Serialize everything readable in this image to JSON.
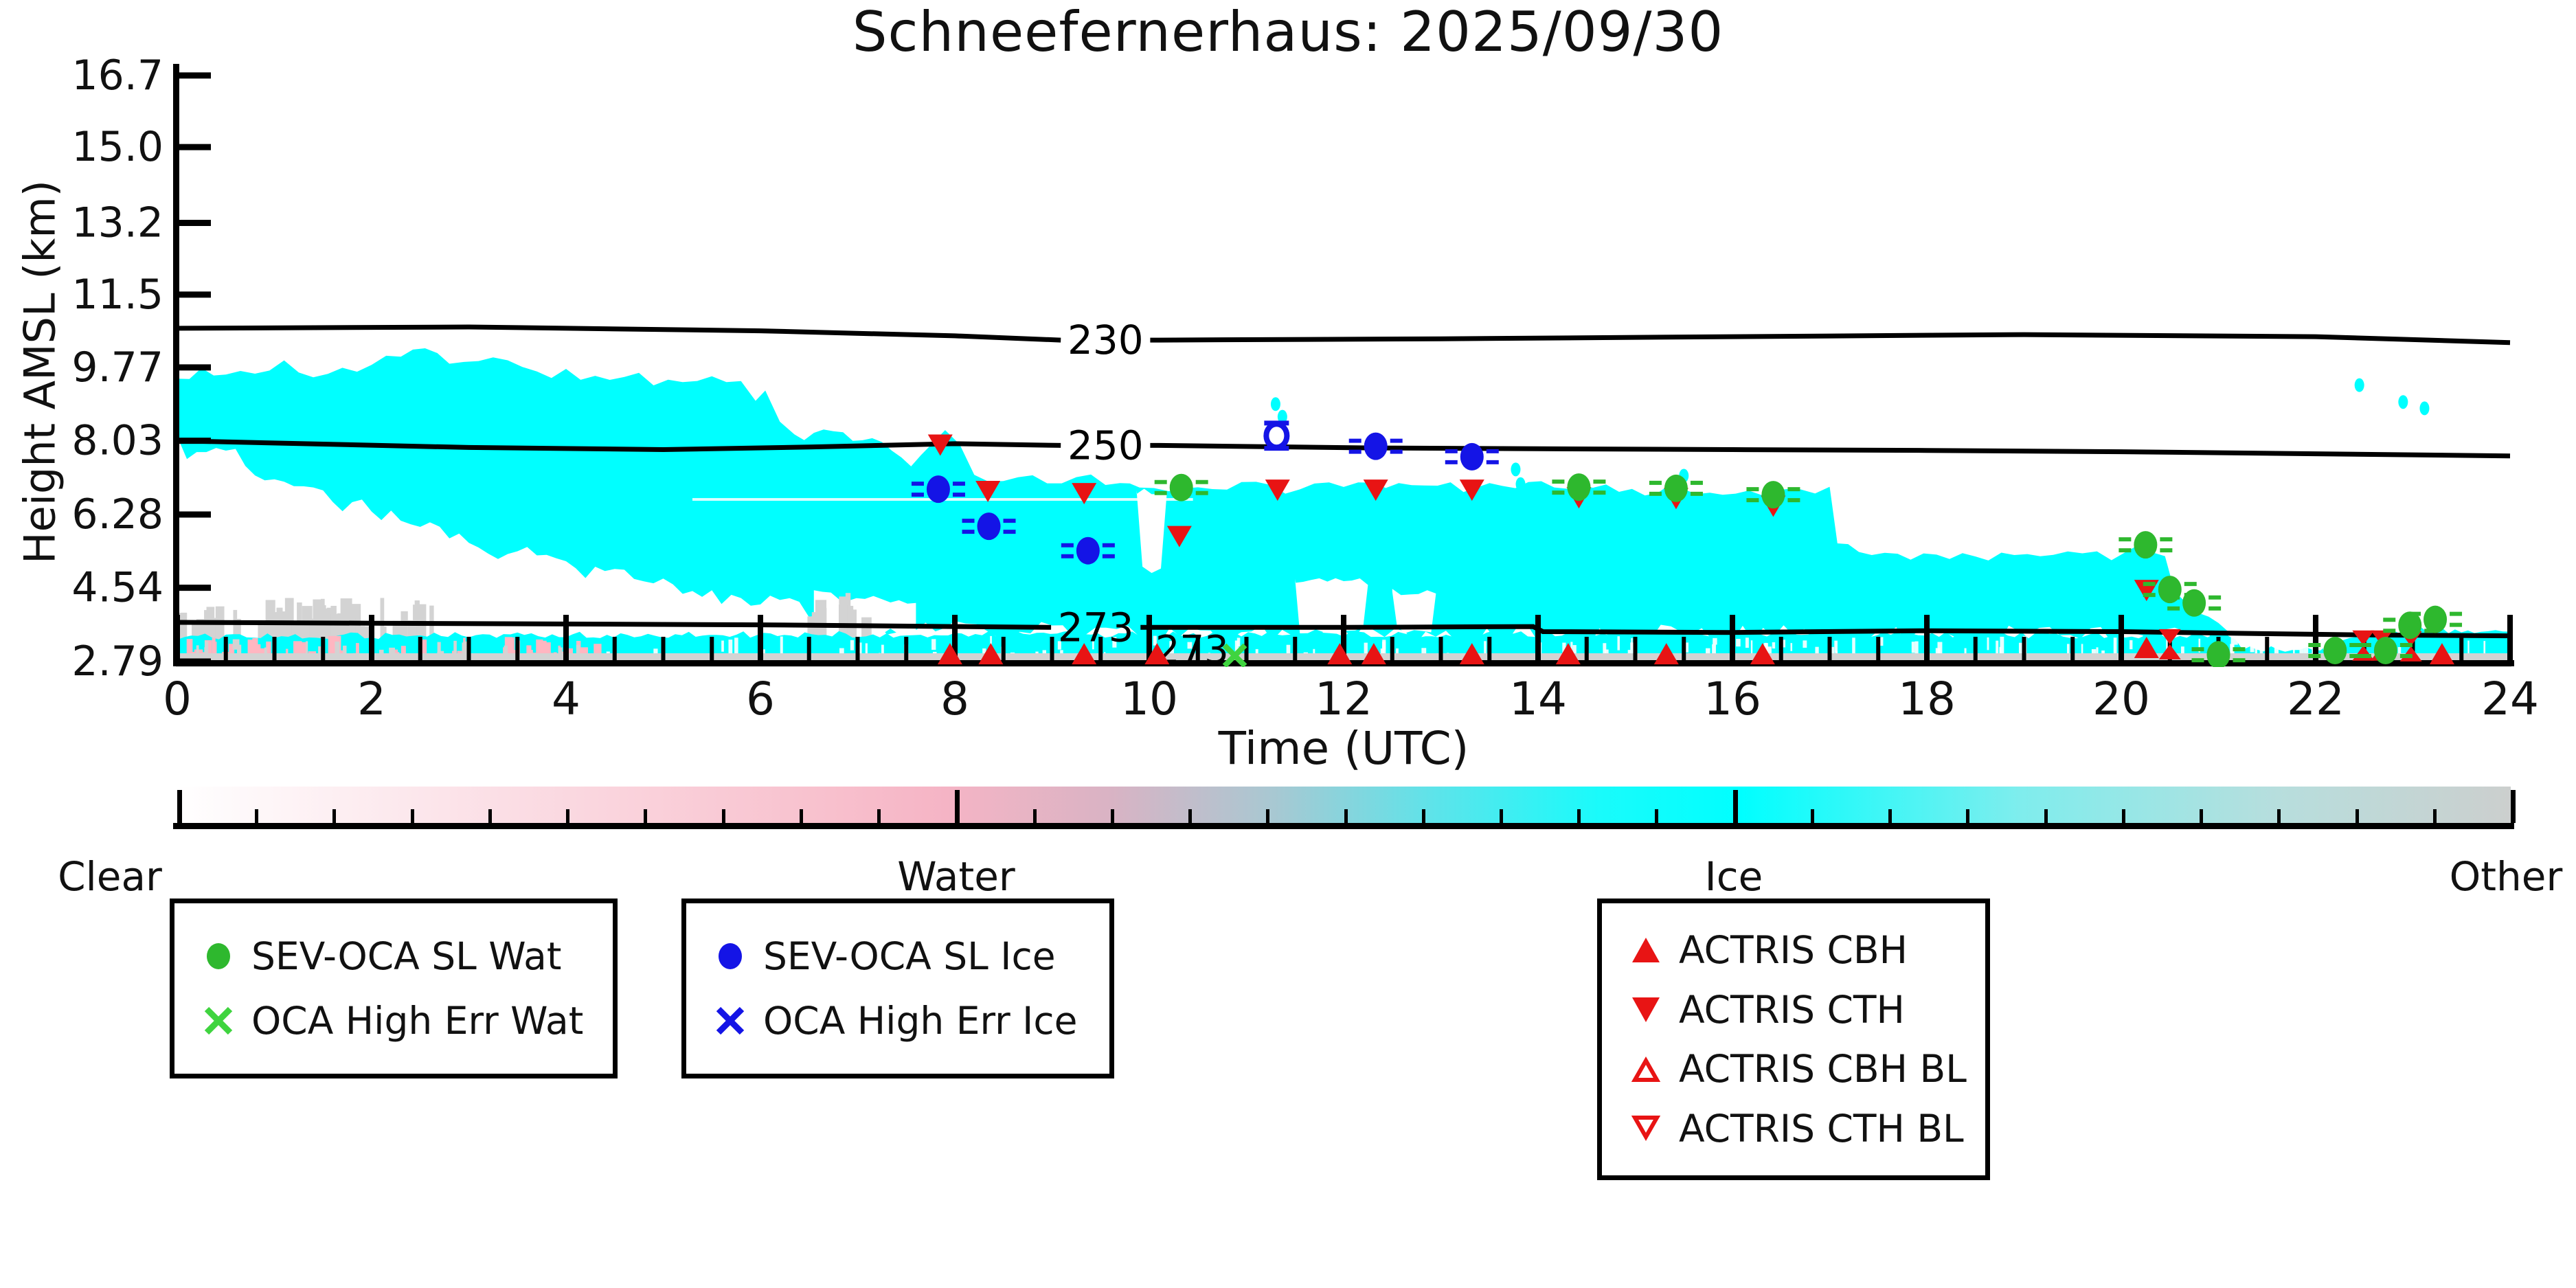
{
  "title": "Schneefernerhaus: 2025/09/30",
  "axes": {
    "xlabel": "Time (UTC)",
    "ylabel": "Height AMSL (km)",
    "xticks": [
      "0",
      "2",
      "4",
      "6",
      "8",
      "10",
      "12",
      "14",
      "16",
      "18",
      "20",
      "22",
      "24"
    ],
    "yticks": [
      "16.7",
      "15.0",
      "13.2",
      "11.5",
      "9.77",
      "8.03",
      "6.28",
      "4.54",
      "2.79"
    ],
    "xrange": [
      0,
      24
    ],
    "x_minor_step_h": 0.5
  },
  "colorbar": {
    "labels": [
      "Clear",
      "Water",
      "Ice",
      "Other"
    ],
    "gradient": [
      [
        0,
        "#ffffff"
      ],
      [
        0.14,
        "#fbdee5"
      ],
      [
        0.28,
        "#f8c0cd"
      ],
      [
        0.33,
        "#f5b4c5"
      ],
      [
        0.4,
        "#d9b3c4"
      ],
      [
        0.47,
        "#a8c8d2"
      ],
      [
        0.54,
        "#5ce4ea"
      ],
      [
        0.61,
        "#19fbfb"
      ],
      [
        0.67,
        "#00ffff"
      ],
      [
        0.79,
        "#7feded"
      ],
      [
        0.9,
        "#b7dedd"
      ],
      [
        1,
        "#cccfce"
      ]
    ]
  },
  "legends": [
    {
      "items": [
        {
          "marker": "circle",
          "color": "#2eb82e",
          "label": "SEV-OCA SL Wat"
        },
        {
          "marker": "x",
          "color": "#3fd43f",
          "label": "OCA High Err Wat"
        }
      ]
    },
    {
      "items": [
        {
          "marker": "circle",
          "color": "#1414e6",
          "label": "SEV-OCA SL Ice"
        },
        {
          "marker": "x",
          "color": "#1414e6",
          "label": "OCA High Err Ice"
        }
      ]
    },
    {
      "items": [
        {
          "marker": "tri-up",
          "color": "#e81414",
          "label": "ACTRIS CBH"
        },
        {
          "marker": "tri-down",
          "color": "#e81414",
          "label": "ACTRIS CTH"
        },
        {
          "marker": "tri-up-open",
          "color": "#e81414",
          "label": "ACTRIS CBH BL"
        },
        {
          "marker": "tri-down-open",
          "color": "#e81414",
          "label": "ACTRIS CTH BL"
        }
      ]
    }
  ],
  "chart_data": {
    "type": "heatmap",
    "title": "Schneefernerhaus: 2025/09/30",
    "xlabel": "Time (UTC)",
    "ylabel": "Height AMSL (km)",
    "xlim": [
      0,
      24
    ],
    "ytick_km": [
      2.79,
      4.54,
      6.28,
      8.03,
      9.77,
      11.5,
      13.2,
      15.0,
      16.7
    ],
    "category_colors": {
      "clear": "#ffffff",
      "water": "#ffb6c1",
      "ice": "#00ffff",
      "other": "#d3d3d3"
    },
    "contours": [
      {
        "label": "230",
        "label_at": [
          9.55,
          10.42
        ],
        "points": [
          [
            0,
            10.7
          ],
          [
            3,
            10.73
          ],
          [
            6,
            10.64
          ],
          [
            8,
            10.52
          ],
          [
            9.1,
            10.46
          ],
          [
            10.1,
            10.42
          ],
          [
            13,
            10.45
          ],
          [
            16,
            10.5
          ],
          [
            19,
            10.55
          ],
          [
            22,
            10.5
          ],
          [
            24,
            10.36
          ]
        ]
      },
      {
        "label": "250",
        "label_at": [
          9.55,
          7.92
        ],
        "points": [
          [
            0,
            8.03
          ],
          [
            1.5,
            7.95
          ],
          [
            3,
            7.87
          ],
          [
            5,
            7.82
          ],
          [
            6.5,
            7.88
          ],
          [
            8,
            7.96
          ],
          [
            9.1,
            7.94
          ],
          [
            10.1,
            7.92
          ],
          [
            12.3,
            7.86
          ],
          [
            14,
            7.84
          ],
          [
            16,
            7.82
          ],
          [
            18,
            7.8
          ],
          [
            20,
            7.77
          ],
          [
            22,
            7.72
          ],
          [
            24,
            7.67
          ]
        ]
      },
      {
        "label": "273",
        "label_at": [
          9.45,
          3.6
        ],
        "label2_at": [
          10.44,
          3.06
        ],
        "points": [
          [
            0,
            3.72
          ],
          [
            2,
            3.7
          ],
          [
            4,
            3.68
          ],
          [
            6,
            3.66
          ],
          [
            8,
            3.62
          ],
          [
            9.0,
            3.61
          ],
          [
            9.9,
            3.58
          ],
          [
            12,
            3.6
          ],
          [
            13.95,
            3.62
          ],
          [
            14.05,
            3.5
          ],
          [
            16,
            3.48
          ],
          [
            18,
            3.52
          ],
          [
            20,
            3.5
          ],
          [
            21.5,
            3.45
          ],
          [
            22.6,
            3.42
          ],
          [
            24,
            3.4
          ]
        ]
      }
    ],
    "clouds": {
      "ice_main_top": [
        [
          0,
          9.5
        ],
        [
          0.25,
          9.75
        ],
        [
          0.5,
          9.55
        ],
        [
          0.8,
          9.7
        ],
        [
          1.1,
          9.95
        ],
        [
          1.4,
          9.6
        ],
        [
          1.7,
          9.8
        ],
        [
          2.0,
          9.75
        ],
        [
          2.3,
          10.1
        ],
        [
          2.55,
          10.2
        ],
        [
          2.8,
          9.85
        ],
        [
          3.1,
          10.05
        ],
        [
          3.4,
          9.85
        ],
        [
          3.7,
          9.6
        ],
        [
          4.0,
          9.7
        ],
        [
          4.3,
          9.5
        ],
        [
          4.6,
          9.65
        ],
        [
          4.9,
          9.45
        ],
        [
          5.2,
          9.55
        ],
        [
          5.5,
          9.6
        ],
        [
          5.8,
          9.35
        ],
        [
          5.95,
          8.85
        ],
        [
          6.05,
          9.25
        ],
        [
          6.2,
          8.55
        ],
        [
          6.35,
          8.2
        ],
        [
          6.55,
          8.1
        ],
        [
          6.75,
          8.3
        ],
        [
          6.95,
          8.05
        ],
        [
          7.15,
          8.2
        ],
        [
          7.35,
          7.7
        ],
        [
          7.55,
          7.5
        ],
        [
          7.75,
          7.95
        ],
        [
          7.9,
          8.2
        ],
        [
          8.05,
          7.85
        ],
        [
          8.2,
          7.25
        ],
        [
          8.5,
          7.05
        ],
        [
          8.8,
          7.2
        ],
        [
          9.1,
          7.0
        ],
        [
          9.4,
          7.15
        ],
        [
          9.7,
          7.05
        ],
        [
          9.9,
          6.85
        ],
        [
          10.2,
          6.9
        ],
        [
          10.5,
          7.0
        ],
        [
          10.8,
          6.85
        ],
        [
          11.1,
          7.1
        ],
        [
          11.4,
          6.85
        ],
        [
          11.7,
          7.0
        ],
        [
          12.0,
          6.85
        ],
        [
          12.3,
          7.0
        ],
        [
          12.7,
          6.85
        ],
        [
          13.1,
          6.95
        ],
        [
          13.5,
          6.9
        ],
        [
          13.9,
          7.05
        ],
        [
          14.3,
          6.85
        ],
        [
          14.7,
          6.95
        ],
        [
          15.1,
          6.85
        ],
        [
          15.5,
          6.9
        ],
        [
          15.9,
          6.8
        ],
        [
          16.3,
          6.85
        ],
        [
          16.7,
          6.8
        ],
        [
          17.0,
          6.85
        ],
        [
          17.08,
          5.6
        ],
        [
          17.3,
          5.35
        ],
        [
          17.7,
          5.3
        ],
        [
          18.1,
          5.35
        ],
        [
          18.5,
          5.2
        ],
        [
          18.9,
          5.3
        ],
        [
          19.3,
          5.45
        ],
        [
          19.6,
          5.35
        ],
        [
          19.9,
          5.3
        ],
        [
          20.2,
          5.5
        ],
        [
          20.45,
          5.2
        ],
        [
          20.55,
          4.4
        ],
        [
          20.7,
          4.0
        ],
        [
          20.9,
          3.75
        ],
        [
          21.1,
          3.5
        ]
      ],
      "ice_main_bottom": [
        [
          0,
          7.95
        ],
        [
          0.3,
          7.6
        ],
        [
          0.6,
          7.7
        ],
        [
          0.9,
          7.3
        ],
        [
          1.2,
          7.05
        ],
        [
          1.5,
          6.8
        ],
        [
          1.8,
          6.5
        ],
        [
          2.1,
          6.3
        ],
        [
          2.4,
          6.05
        ],
        [
          2.7,
          5.9
        ],
        [
          3.0,
          5.6
        ],
        [
          3.3,
          5.45
        ],
        [
          3.6,
          5.3
        ],
        [
          3.9,
          5.15
        ],
        [
          4.2,
          5.0
        ],
        [
          4.5,
          4.85
        ],
        [
          4.8,
          4.7
        ],
        [
          5.1,
          4.6
        ],
        [
          5.4,
          4.45
        ],
        [
          5.7,
          4.35
        ],
        [
          6.0,
          4.2
        ],
        [
          6.3,
          4.05
        ],
        [
          6.6,
          3.9
        ],
        [
          7.0,
          3.75
        ],
        [
          7.5,
          3.62
        ],
        [
          8.0,
          3.55
        ],
        [
          9,
          3.48
        ],
        [
          10,
          3.44
        ],
        [
          12,
          3.42
        ],
        [
          14,
          3.42
        ],
        [
          16,
          3.42
        ],
        [
          18,
          3.42
        ],
        [
          20,
          3.4
        ],
        [
          21.1,
          3.32
        ]
      ],
      "band_top": [
        [
          0,
          3.38
        ],
        [
          2,
          3.4
        ],
        [
          4,
          3.42
        ],
        [
          8,
          3.44
        ],
        [
          12,
          3.44
        ],
        [
          16,
          3.44
        ],
        [
          21.1,
          3.4
        ],
        [
          21.25,
          3.1
        ],
        [
          22.05,
          3.06
        ],
        [
          22.2,
          3.3
        ],
        [
          22.8,
          3.48
        ],
        [
          23.3,
          3.55
        ],
        [
          23.7,
          3.42
        ],
        [
          24,
          3.5
        ]
      ],
      "band_bottom_km": 2.8,
      "white_gaps": [
        [
          [
            9.87,
            6.85
          ],
          [
            10.18,
            6.85
          ],
          [
            10.12,
            5.0
          ],
          [
            9.93,
            4.95
          ]
        ],
        [
          [
            11.5,
            4.75
          ],
          [
            12.25,
            4.7
          ],
          [
            12.2,
            3.5
          ],
          [
            11.55,
            3.5
          ]
        ],
        [
          [
            12.5,
            4.45
          ],
          [
            12.95,
            4.4
          ],
          [
            12.9,
            3.52
          ],
          [
            12.55,
            3.52
          ]
        ],
        [
          [
            6.55,
            4.4
          ],
          [
            7.6,
            4.15
          ],
          [
            7.6,
            3.5
          ],
          [
            6.55,
            3.5
          ]
        ]
      ],
      "ice_specks": [
        [
          11.3,
          8.9
        ],
        [
          11.37,
          8.6
        ],
        [
          13.77,
          7.35
        ],
        [
          13.82,
          7.0
        ],
        [
          15.5,
          7.2
        ],
        [
          22.45,
          9.35
        ],
        [
          22.9,
          8.95
        ],
        [
          23.12,
          8.8
        ]
      ],
      "gray_columns": [
        {
          "t": [
            0,
            2.6
          ],
          "top": [
            3.55,
            4.3
          ],
          "n": 60
        },
        {
          "t": [
            6.42,
            7.05
          ],
          "top": [
            3.8,
            4.55
          ],
          "n": 14
        }
      ],
      "pink_columns": {
        "t": [
          0,
          4.3
        ],
        "range": [
          2.82,
          3.4
        ],
        "n": 95
      },
      "gray_flecks": {
        "t": [
          0,
          4.3
        ],
        "range": [
          2.85,
          3.35
        ],
        "n": 35
      },
      "white_speckles": {
        "t": [
          4.3,
          24
        ],
        "range": [
          2.92,
          3.4
        ],
        "n": 140
      }
    },
    "markers": {
      "sev_oca_sl_wat": [
        [
          10.33,
          6.92
        ],
        [
          14.42,
          6.93
        ],
        [
          15.42,
          6.9
        ],
        [
          16.42,
          6.75
        ],
        [
          20.25,
          5.56
        ],
        [
          20.5,
          4.5
        ],
        [
          20.75,
          4.18
        ],
        [
          21.0,
          2.95
        ],
        [
          22.2,
          3.05
        ],
        [
          22.72,
          3.05
        ],
        [
          22.97,
          3.65
        ],
        [
          23.23,
          3.79
        ]
      ],
      "sev_oca_sl_ice": [
        [
          7.83,
          6.88
        ],
        [
          8.35,
          6.0
        ],
        [
          9.37,
          5.42
        ],
        [
          12.33,
          7.9
        ],
        [
          13.32,
          7.65
        ]
      ],
      "oca_high_err_ice": [
        [
          11.31,
          8.15,
          0.3
        ]
      ],
      "oca_high_err_wat": [
        [
          10.88,
          2.93
        ]
      ],
      "actris_cbh": [
        [
          7.95,
          2.95
        ],
        [
          8.37,
          2.95
        ],
        [
          9.33,
          2.95
        ],
        [
          10.08,
          2.95
        ],
        [
          11.96,
          2.95
        ],
        [
          12.31,
          2.95
        ],
        [
          13.32,
          2.95
        ],
        [
          14.31,
          2.95
        ],
        [
          15.32,
          2.95
        ],
        [
          16.31,
          2.95
        ],
        [
          20.26,
          3.1
        ],
        [
          23.3,
          2.95
        ]
      ],
      "actris_cth": [
        [
          7.85,
          7.95
        ],
        [
          8.34,
          6.85
        ],
        [
          9.33,
          6.8
        ],
        [
          10.31,
          5.78
        ],
        [
          11.32,
          6.88
        ],
        [
          12.33,
          6.88
        ],
        [
          13.32,
          6.88
        ],
        [
          14.42,
          6.7
        ],
        [
          15.42,
          6.68
        ],
        [
          16.42,
          6.5
        ],
        [
          20.26,
          4.5
        ]
      ],
      "actris_cbh_cth_pairs": [
        [
          20.5,
          3.2
        ],
        [
          22.49,
          3.17
        ],
        [
          22.68,
          3.17
        ],
        [
          22.98,
          3.15
        ]
      ]
    }
  }
}
